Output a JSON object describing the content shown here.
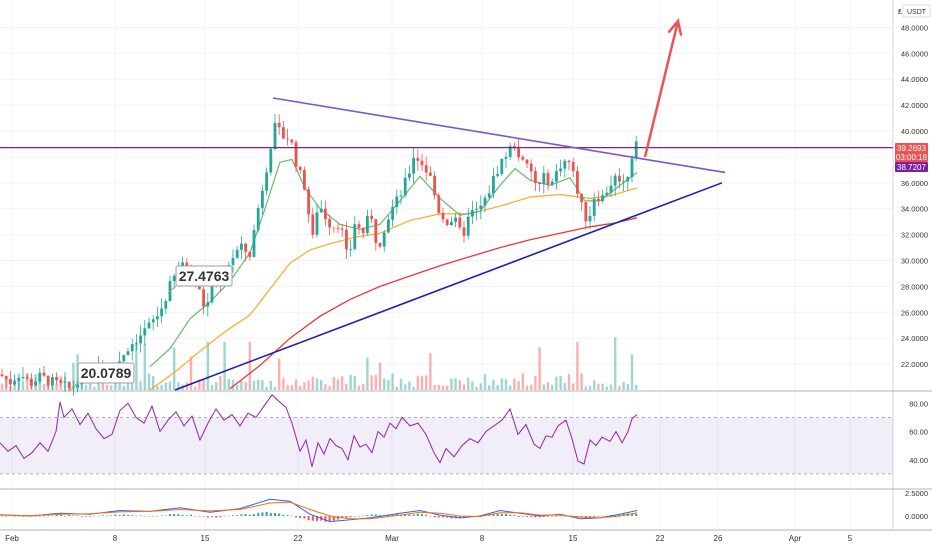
{
  "chart_data": [
    {
      "type": "candlestick",
      "quote_currency": "USDT",
      "currency_symbol": "₤",
      "ylim": [
        20.0,
        49.5
      ],
      "yticks": [
        "22.0000",
        "24.0000",
        "26.0000",
        "28.0000",
        "30.0000",
        "32.0000",
        "34.0000",
        "36.0000",
        "38.0000",
        "40.0000",
        "42.0000",
        "44.0000",
        "46.0000",
        "48.0000"
      ],
      "x_ticks": [
        "Feb",
        "8",
        "15",
        "22",
        "Mar",
        "8",
        "15",
        "22",
        "26",
        "Apr",
        "5"
      ],
      "price_tags": [
        {
          "value": "39.2693",
          "color": "#ef5350"
        },
        {
          "value": "03:00:18",
          "color": "#ef5350"
        },
        {
          "value": "38.7207",
          "color": "#7b1fa2"
        }
      ],
      "callouts": [
        "20.0789",
        "27.4763"
      ],
      "horizontal_level": 38.72,
      "ohlc_path": [
        [
          0,
          21.2
        ],
        [
          10,
          20.6
        ],
        [
          20,
          21.3
        ],
        [
          30,
          20.5
        ],
        [
          40,
          21.0
        ],
        [
          55,
          20.5
        ],
        [
          70,
          20.08
        ],
        [
          85,
          21.0
        ],
        [
          100,
          21.7
        ],
        [
          110,
          21.6
        ],
        [
          120,
          22.4
        ],
        [
          130,
          23.5
        ],
        [
          140,
          24.2
        ],
        [
          150,
          25.0
        ],
        [
          160,
          26.0
        ],
        [
          170,
          28.0
        ],
        [
          180,
          29.6
        ],
        [
          190,
          29.2
        ],
        [
          200,
          27.47
        ],
        [
          206,
          26.0
        ],
        [
          212,
          28.2
        ],
        [
          220,
          28.3
        ],
        [
          230,
          30.0
        ],
        [
          240,
          31.0
        ],
        [
          250,
          30.5
        ],
        [
          258,
          34.0
        ],
        [
          266,
          37.0
        ],
        [
          274,
          40.3
        ],
        [
          282,
          39.6
        ],
        [
          290,
          39.5
        ],
        [
          298,
          37.0
        ],
        [
          306,
          35.5
        ],
        [
          312,
          31.2
        ],
        [
          318,
          34.5
        ],
        [
          325,
          33.5
        ],
        [
          332,
          32.6
        ],
        [
          340,
          33.0
        ],
        [
          348,
          29.8
        ],
        [
          355,
          33.0
        ],
        [
          362,
          32.0
        ],
        [
          370,
          33.5
        ],
        [
          378,
          31.0
        ],
        [
          385,
          32.8
        ],
        [
          392,
          34.0
        ],
        [
          400,
          35.0
        ],
        [
          408,
          36.5
        ],
        [
          414,
          38.2
        ],
        [
          422,
          37.5
        ],
        [
          430,
          36.5
        ],
        [
          438,
          34.0
        ],
        [
          446,
          33.0
        ],
        [
          454,
          33.2
        ],
        [
          462,
          31.8
        ],
        [
          470,
          33.6
        ],
        [
          478,
          33.8
        ],
        [
          485,
          34.6
        ],
        [
          492,
          36.0
        ],
        [
          500,
          37.5
        ],
        [
          508,
          38.4
        ],
        [
          515,
          39.0
        ],
        [
          522,
          37.5
        ],
        [
          530,
          37.0
        ],
        [
          538,
          35.5
        ],
        [
          545,
          36.5
        ],
        [
          552,
          36.0
        ],
        [
          560,
          37.4
        ],
        [
          568,
          37.8
        ],
        [
          575,
          36.2
        ],
        [
          582,
          34.0
        ],
        [
          588,
          33.0
        ],
        [
          595,
          35.2
        ],
        [
          602,
          34.8
        ],
        [
          610,
          35.9
        ],
        [
          618,
          36.6
        ],
        [
          625,
          35.8
        ],
        [
          630,
          37.4
        ],
        [
          635,
          39.27
        ]
      ],
      "ema_green": [
        [
          150,
          21.8
        ],
        [
          170,
          23.2
        ],
        [
          190,
          25.5
        ],
        [
          210,
          26.8
        ],
        [
          230,
          28.4
        ],
        [
          250,
          30.6
        ],
        [
          265,
          34.0
        ],
        [
          280,
          37.6
        ],
        [
          292,
          37.8
        ],
        [
          305,
          35.6
        ],
        [
          320,
          34.0
        ],
        [
          340,
          32.8
        ],
        [
          360,
          32.4
        ],
        [
          380,
          32.8
        ],
        [
          400,
          34.6
        ],
        [
          420,
          36.5
        ],
        [
          440,
          34.8
        ],
        [
          460,
          33.5
        ],
        [
          480,
          33.8
        ],
        [
          500,
          35.8
        ],
        [
          515,
          37.1
        ],
        [
          530,
          36.2
        ],
        [
          550,
          35.8
        ],
        [
          570,
          36.4
        ],
        [
          585,
          34.6
        ],
        [
          600,
          34.6
        ],
        [
          620,
          35.8
        ],
        [
          637,
          36.8
        ]
      ],
      "ema_orange": [
        [
          150,
          20.0
        ],
        [
          175,
          21.4
        ],
        [
          200,
          23.0
        ],
        [
          225,
          24.5
        ],
        [
          250,
          25.8
        ],
        [
          270,
          27.8
        ],
        [
          290,
          29.8
        ],
        [
          310,
          30.8
        ],
        [
          330,
          31.3
        ],
        [
          355,
          31.8
        ],
        [
          380,
          32.1
        ],
        [
          410,
          33.1
        ],
        [
          440,
          33.6
        ],
        [
          470,
          33.6
        ],
        [
          500,
          34.2
        ],
        [
          530,
          34.9
        ],
        [
          560,
          35.1
        ],
        [
          590,
          34.8
        ],
        [
          610,
          35.0
        ],
        [
          637,
          35.6
        ]
      ],
      "ema_red": [
        [
          230,
          20.1
        ],
        [
          260,
          21.9
        ],
        [
          290,
          24.0
        ],
        [
          320,
          25.7
        ],
        [
          350,
          27.0
        ],
        [
          380,
          28.0
        ],
        [
          410,
          28.8
        ],
        [
          440,
          29.6
        ],
        [
          470,
          30.3
        ],
        [
          500,
          31.0
        ],
        [
          530,
          31.6
        ],
        [
          560,
          32.1
        ],
        [
          590,
          32.6
        ],
        [
          615,
          32.9
        ],
        [
          637,
          33.3
        ]
      ],
      "lines": [
        {
          "color": "#7e57c2",
          "from": [
            273,
            42.55
          ],
          "to": [
            725,
            36.8
          ]
        },
        {
          "color": "#1f1fb8",
          "from": [
            175,
            20.0
          ],
          "to": [
            722,
            36.0
          ]
        }
      ],
      "arrow": {
        "color": "#ef5350",
        "from": [
          645,
          38.0
        ],
        "to": [
          678,
          48.5
        ]
      }
    },
    {
      "type": "line",
      "name_hint": "rsi",
      "ylim": [
        20,
        88
      ],
      "yticks": [
        "80.00",
        "60.00",
        "40.00"
      ],
      "band": [
        30,
        70
      ],
      "path": [
        [
          0,
          52
        ],
        [
          8,
          46
        ],
        [
          16,
          50
        ],
        [
          24,
          41
        ],
        [
          32,
          45
        ],
        [
          40,
          52
        ],
        [
          48,
          46
        ],
        [
          56,
          60
        ],
        [
          60,
          81
        ],
        [
          64,
          70
        ],
        [
          72,
          76
        ],
        [
          80,
          65
        ],
        [
          88,
          73
        ],
        [
          96,
          62
        ],
        [
          104,
          55
        ],
        [
          112,
          58
        ],
        [
          120,
          75
        ],
        [
          128,
          80
        ],
        [
          136,
          70
        ],
        [
          144,
          66
        ],
        [
          152,
          78
        ],
        [
          160,
          60
        ],
        [
          168,
          68
        ],
        [
          176,
          74
        ],
        [
          184,
          64
        ],
        [
          192,
          71
        ],
        [
          200,
          54
        ],
        [
          208,
          66
        ],
        [
          216,
          76
        ],
        [
          224,
          68
        ],
        [
          232,
          72
        ],
        [
          240,
          64
        ],
        [
          248,
          73
        ],
        [
          256,
          70
        ],
        [
          264,
          78
        ],
        [
          272,
          86
        ],
        [
          278,
          82
        ],
        [
          286,
          77
        ],
        [
          292,
          66
        ],
        [
          300,
          46
        ],
        [
          306,
          54
        ],
        [
          312,
          35
        ],
        [
          318,
          52
        ],
        [
          324,
          44
        ],
        [
          330,
          55
        ],
        [
          336,
          50
        ],
        [
          342,
          48
        ],
        [
          348,
          40
        ],
        [
          354,
          57
        ],
        [
          360,
          49
        ],
        [
          366,
          51
        ],
        [
          372,
          45
        ],
        [
          378,
          60
        ],
        [
          384,
          56
        ],
        [
          390,
          66
        ],
        [
          396,
          62
        ],
        [
          402,
          70
        ],
        [
          410,
          64
        ],
        [
          418,
          66
        ],
        [
          426,
          58
        ],
        [
          434,
          45
        ],
        [
          440,
          38
        ],
        [
          446,
          48
        ],
        [
          454,
          42
        ],
        [
          462,
          50
        ],
        [
          470,
          55
        ],
        [
          478,
          52
        ],
        [
          486,
          60
        ],
        [
          494,
          64
        ],
        [
          502,
          68
        ],
        [
          510,
          76
        ],
        [
          518,
          58
        ],
        [
          526,
          65
        ],
        [
          534,
          51
        ],
        [
          540,
          48
        ],
        [
          546,
          57
        ],
        [
          552,
          56
        ],
        [
          558,
          64
        ],
        [
          566,
          68
        ],
        [
          572,
          55
        ],
        [
          578,
          39
        ],
        [
          584,
          37
        ],
        [
          590,
          54
        ],
        [
          596,
          50
        ],
        [
          602,
          56
        ],
        [
          610,
          53
        ],
        [
          616,
          60
        ],
        [
          622,
          52
        ],
        [
          628,
          60
        ],
        [
          632,
          69
        ],
        [
          637,
          72
        ]
      ]
    },
    {
      "type": "line",
      "name_hint": "macd",
      "ylim": [
        -1.5,
        2.8
      ],
      "yticks": [
        "2.5000",
        "0.0000"
      ],
      "macd": [
        [
          0,
          0.15
        ],
        [
          30,
          0.0
        ],
        [
          60,
          0.3
        ],
        [
          90,
          0.2
        ],
        [
          120,
          0.6
        ],
        [
          150,
          0.5
        ],
        [
          180,
          0.9
        ],
        [
          210,
          0.4
        ],
        [
          240,
          0.8
        ],
        [
          270,
          1.8
        ],
        [
          290,
          1.6
        ],
        [
          310,
          0.2
        ],
        [
          330,
          -0.6
        ],
        [
          350,
          -0.4
        ],
        [
          370,
          -0.2
        ],
        [
          400,
          0.3
        ],
        [
          420,
          0.6
        ],
        [
          440,
          0.1
        ],
        [
          460,
          -0.2
        ],
        [
          480,
          0.0
        ],
        [
          500,
          0.6
        ],
        [
          520,
          0.3
        ],
        [
          540,
          0.0
        ],
        [
          560,
          0.2
        ],
        [
          580,
          -0.3
        ],
        [
          600,
          -0.2
        ],
        [
          620,
          0.2
        ],
        [
          637,
          0.6
        ]
      ],
      "signal": [
        [
          0,
          0.1
        ],
        [
          30,
          0.05
        ],
        [
          60,
          0.2
        ],
        [
          90,
          0.25
        ],
        [
          120,
          0.45
        ],
        [
          150,
          0.5
        ],
        [
          180,
          0.7
        ],
        [
          210,
          0.55
        ],
        [
          240,
          0.7
        ],
        [
          270,
          1.4
        ],
        [
          290,
          1.5
        ],
        [
          310,
          0.7
        ],
        [
          330,
          0.0
        ],
        [
          350,
          -0.3
        ],
        [
          370,
          -0.3
        ],
        [
          400,
          0.1
        ],
        [
          420,
          0.4
        ],
        [
          440,
          0.3
        ],
        [
          460,
          0.0
        ],
        [
          480,
          -0.05
        ],
        [
          500,
          0.35
        ],
        [
          520,
          0.35
        ],
        [
          540,
          0.1
        ],
        [
          560,
          0.1
        ],
        [
          580,
          -0.1
        ],
        [
          600,
          -0.2
        ],
        [
          620,
          0.0
        ],
        [
          637,
          0.35
        ]
      ]
    }
  ]
}
